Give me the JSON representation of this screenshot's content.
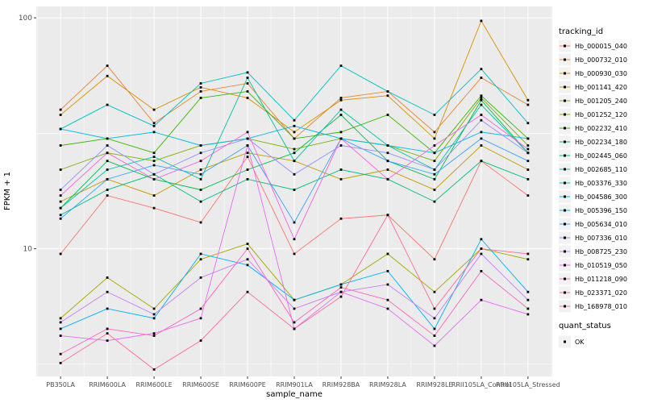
{
  "chart_data": {
    "type": "line",
    "title": "",
    "xlabel": "sample_name",
    "ylabel": "FPKM + 1",
    "y_scale": "log10",
    "ylim": [
      2.8,
      112
    ],
    "y_ticks": [
      10,
      100
    ],
    "y_tick_labels": [
      "10",
      "100"
    ],
    "grid": true,
    "legend_position": "right",
    "categories": [
      "PB350LA",
      "RRIM600LA",
      "RRIM600LE",
      "RRIM600SE",
      "RRIM600PE",
      "RRIM901LA",
      "RRIM928BA",
      "RRIM928LA",
      "RRIM928LE",
      "RRII105LA_Control",
      "RRII105LA_Stressed"
    ],
    "series": [
      {
        "name": "Hb_000015_040",
        "color": "#F8766D",
        "values": [
          9.5,
          17,
          15,
          13,
          25,
          9.5,
          13.5,
          14,
          9,
          24,
          17
        ]
      },
      {
        "name": "Hb_000732_010",
        "color": "#EA8331",
        "values": [
          40,
          62,
          35,
          48,
          52,
          30,
          45,
          48,
          32,
          55,
          42
        ]
      },
      {
        "name": "Hb_000930_030",
        "color": "#D89000",
        "values": [
          38,
          56,
          40,
          50,
          45,
          32,
          44,
          46,
          30,
          97,
          44
        ]
      },
      {
        "name": "Hb_001141_420",
        "color": "#C09B00",
        "values": [
          16,
          20,
          17,
          22,
          26,
          24,
          20,
          22,
          18,
          28,
          22
        ]
      },
      {
        "name": "Hb_001205_240",
        "color": "#A3A500",
        "values": [
          5,
          7.5,
          5.5,
          9,
          10.5,
          6,
          7,
          9.5,
          6.5,
          10,
          9
        ]
      },
      {
        "name": "Hb_001252_120",
        "color": "#7CAE00",
        "values": [
          22,
          26,
          24,
          28,
          30,
          27,
          30,
          28,
          24,
          45,
          28
        ]
      },
      {
        "name": "Hb_002232_410",
        "color": "#39B600",
        "values": [
          28,
          30,
          26,
          45,
          48,
          30,
          32,
          38,
          26,
          46,
          30
        ]
      },
      {
        "name": "Hb_002234_180",
        "color": "#00BB4E",
        "values": [
          15,
          24,
          20,
          18,
          22,
          26,
          38,
          24,
          20,
          44,
          26
        ]
      },
      {
        "name": "Hb_002445_060",
        "color": "#00BF7D",
        "values": [
          14,
          18,
          21,
          16,
          20,
          18,
          22,
          20,
          16,
          24,
          20
        ]
      },
      {
        "name": "Hb_002685_110",
        "color": "#00C1A3",
        "values": [
          15,
          22,
          25,
          20,
          55,
          24,
          40,
          28,
          22,
          42,
          26
        ]
      },
      {
        "name": "Hb_003376_330",
        "color": "#00BFC4",
        "values": [
          33,
          42,
          34,
          52,
          58,
          36,
          62,
          48,
          38,
          60,
          35
        ]
      },
      {
        "name": "Hb_004586_300",
        "color": "#00BAE0",
        "values": [
          33,
          30,
          32,
          28,
          30,
          34,
          30,
          28,
          26,
          32,
          30
        ]
      },
      {
        "name": "Hb_005396_150",
        "color": "#00B0F6",
        "values": [
          4.5,
          5.5,
          5,
          9.5,
          8.5,
          6,
          7,
          8,
          4.5,
          11,
          6.5
        ]
      },
      {
        "name": "Hb_005634_010",
        "color": "#35A2FF",
        "values": [
          13.5,
          20,
          23,
          21,
          28,
          13,
          30,
          24,
          21,
          30,
          24
        ]
      },
      {
        "name": "Hb_007336_010",
        "color": "#9590FF",
        "values": [
          18,
          28,
          21,
          26,
          30,
          21,
          28,
          26,
          22,
          36,
          26
        ]
      },
      {
        "name": "Hb_008725_230",
        "color": "#C77CFF",
        "values": [
          4.8,
          6.5,
          5.2,
          7.5,
          9,
          5.5,
          6.5,
          7,
          5,
          9.5,
          6
        ]
      },
      {
        "name": "Hb_010519_050",
        "color": "#E76BF3",
        "values": [
          4.2,
          4.0,
          4.3,
          5.0,
          28,
          4.5,
          6.5,
          5.5,
          3.8,
          6,
          5.2
        ]
      },
      {
        "name": "Hb_011218_090",
        "color": "#FA62DB",
        "values": [
          17,
          26,
          20,
          24,
          32,
          11,
          30,
          20,
          28,
          38,
          27
        ]
      },
      {
        "name": "Hb_023371_020",
        "color": "#FF62BC",
        "values": [
          3.5,
          4.5,
          4.2,
          5.5,
          10,
          4.8,
          6.8,
          6,
          4.2,
          8,
          5.5
        ]
      },
      {
        "name": "Hb_168978_010",
        "color": "#FF6A98",
        "values": [
          3.2,
          4.3,
          3.0,
          4.0,
          6.5,
          4.5,
          6.2,
          14,
          5.5,
          10,
          9.5
        ]
      }
    ],
    "legend": {
      "color_title": "tracking_id",
      "shape_title": "quant_status",
      "shape_entries": [
        {
          "label": "OK",
          "marker": "point-icon"
        }
      ]
    },
    "style": {
      "background": "#FFFFFF",
      "panel_bg": "#EBEBEB",
      "grid_color": "#FFFFFF",
      "point_color": "#000000",
      "tick_color": "#333333",
      "tick_label_color": "#4D4D4D",
      "axis_title_color": "#000000",
      "legend_key_bg": "#F2F2F2"
    }
  }
}
